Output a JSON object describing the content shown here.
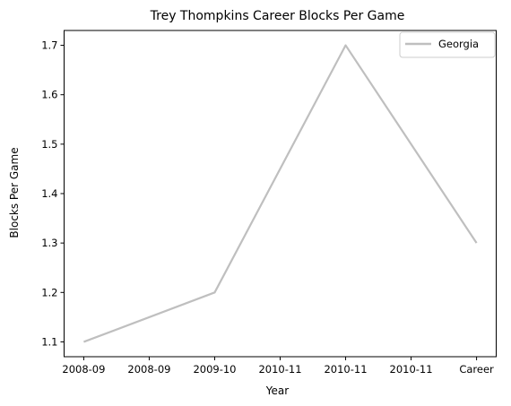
{
  "chart_data": {
    "type": "line",
    "title": "Trey Thompkins Career Blocks Per Game",
    "xlabel": "Year",
    "ylabel": "Blocks Per Game",
    "x_tick_labels": [
      "2008-09",
      "2008-09",
      "2009-10",
      "2010-11",
      "2010-11",
      "2010-11",
      "Career"
    ],
    "y_ticks": [
      1.1,
      1.2,
      1.3,
      1.4,
      1.5,
      1.6,
      1.7
    ],
    "ylim": [
      1.07,
      1.73
    ],
    "grid": false,
    "legend_position": "top-right",
    "series": [
      {
        "name": "Georgia",
        "color": "#bfbfbf",
        "x": [
          0,
          2,
          4,
          6
        ],
        "values": [
          1.1,
          1.2,
          1.7,
          1.3
        ]
      }
    ]
  }
}
